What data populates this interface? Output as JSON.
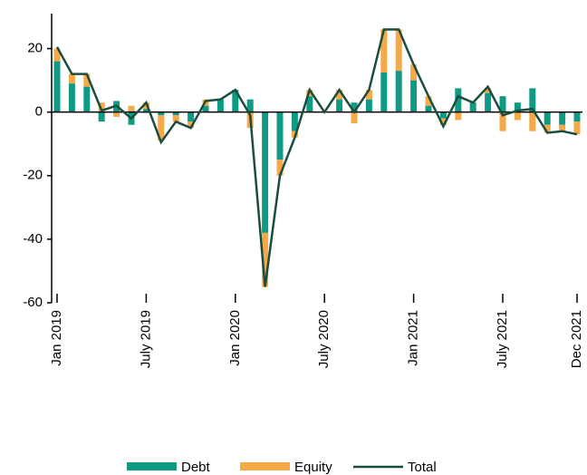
{
  "chart_data": {
    "type": "bar",
    "stacked": true,
    "categories": [
      "Jan 2019",
      null,
      null,
      null,
      null,
      null,
      "July 2019",
      null,
      null,
      null,
      null,
      null,
      "Jan 2020",
      null,
      null,
      null,
      null,
      null,
      "July 2020",
      null,
      null,
      null,
      null,
      null,
      "Jan 2021",
      null,
      null,
      null,
      null,
      null,
      "July 2021",
      null,
      null,
      null,
      null,
      "Dec 2021"
    ],
    "series": [
      {
        "name": "Debt",
        "type": "bar",
        "color": "#0f9a83",
        "values": [
          16,
          9,
          8,
          -3,
          3.5,
          -4,
          1,
          -1,
          -1,
          -3,
          2,
          4,
          7,
          4,
          -38,
          -15,
          -6,
          5,
          0,
          4,
          3,
          4,
          12.5,
          13,
          10,
          2,
          -2,
          7.5,
          3,
          6,
          5,
          3,
          7.5,
          -4,
          -4,
          -3
        ]
      },
      {
        "name": "Equity",
        "type": "bar",
        "color": "#f5a947",
        "values": [
          4,
          3,
          4,
          3,
          -1.5,
          2,
          2,
          -8,
          -2,
          -2,
          2,
          0,
          0,
          -5,
          -17,
          -5,
          -2,
          2,
          0,
          3,
          -3.5,
          3,
          13.5,
          13,
          5,
          3,
          -2,
          -2.5,
          0,
          1.5,
          -6,
          -2.5,
          -6,
          -2.5,
          -2,
          -4
        ]
      },
      {
        "name": "Total",
        "type": "line",
        "color": "#1b4d3e",
        "values": [
          20.5,
          12,
          12,
          0.5,
          2,
          -2,
          3,
          -9.5,
          -3,
          -5,
          3.5,
          4,
          7,
          -1,
          -55,
          -20,
          -8,
          7,
          0,
          7,
          0,
          7,
          26,
          26,
          15,
          5,
          -4.5,
          5,
          3,
          8,
          -1,
          0.5,
          1,
          -6.5,
          -6,
          -7
        ]
      }
    ],
    "ylim": [
      -60,
      31
    ],
    "yticks": [
      -60,
      -40,
      -20,
      0,
      20
    ]
  }
}
